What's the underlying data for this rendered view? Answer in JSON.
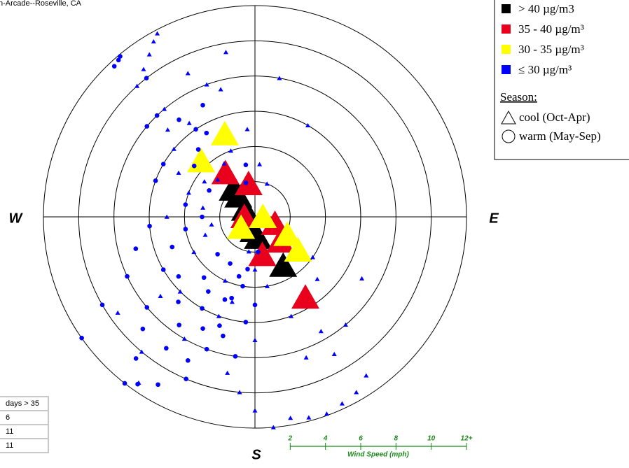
{
  "chart_data": {
    "type": "polar-scatter",
    "title": "n-Arcade--Roseville, CA",
    "compass": [
      "W",
      "E",
      "S"
    ],
    "rlim": [
      0,
      12
    ],
    "rticks": [
      2,
      4,
      6,
      8,
      10,
      {
        "value": 12,
        "label": "12+"
      }
    ],
    "r_axis_label": "Wind Speed (mph)",
    "legend": {
      "concentration": [
        "> 40 µg/m3",
        "35 - 40 µg/m³",
        "30 - 35 µg/m³",
        "≤ 30 µg/m³"
      ],
      "season_title": "Season:",
      "season": [
        "cool (Oct-Apr)",
        "warm (May-Sep)"
      ]
    },
    "series": [
      {
        "color": "#000000",
        "marker": "triangle",
        "x": [
          321,
          321,
          306,
          186,
          172,
          150
        ],
        "values": [
          2.0,
          1.5,
          0.7,
          0.8,
          1.2,
          3.2
        ]
      },
      {
        "color": "#e8001c",
        "marker": "triangle",
        "x": [
          326,
          349,
          109,
          134,
          169,
          148,
          270
        ],
        "values": [
          3.0,
          1.9,
          1.2,
          2.0,
          2.2,
          5.4,
          0.6
        ]
      },
      {
        "color": "#ffff00",
        "marker": "triangle",
        "x": [
          340,
          316,
          232,
          119,
          128,
          90
        ],
        "values": [
          5.0,
          4.4,
          1.0,
          2.1,
          3.1,
          0.45
        ]
      },
      {
        "color": "#0000ff",
        "marker": "triangle",
        "x": [
          330,
          332,
          327,
          323,
          318,
          335,
          340,
          345,
          350,
          320,
          315,
          310,
          325,
          300,
          290,
          305,
          315,
          330,
          340,
          355,
          5,
          20,
          30,
          10,
          200,
          210,
          220,
          215,
          190,
          180,
          175,
          170,
          165,
          160,
          155,
          150,
          145,
          150,
          140,
          160,
          170,
          180,
          190,
          240,
          250,
          260,
          270,
          280,
          135,
          125,
          120,
          150,
          160,
          180,
          195,
          205,
          230,
          235,
          225,
          185
        ],
        "values": [
          11.5,
          11.8,
          11,
          10.5,
          10,
          9,
          8,
          7.5,
          9.5,
          8,
          7,
          6,
          6.5,
          5,
          4,
          3.5,
          3,
          3.5,
          4,
          5,
          3,
          2,
          6,
          8,
          6,
          8,
          10,
          11.5,
          9,
          11,
          12,
          11.6,
          11.8,
          11.9,
          11.7,
          11.5,
          11,
          9,
          8,
          6,
          4,
          3,
          2,
          4,
          3,
          2.5,
          5,
          3,
          5,
          4,
          7,
          7.5,
          8.5,
          7,
          5,
          4,
          7,
          9.5,
          6,
          10
        ]
      },
      {
        "color": "#0000ff",
        "marker": "circle",
        "x": [
          320,
          319,
          317,
          322,
          316,
          322,
          326,
          330,
          320,
          310,
          300,
          290,
          280,
          270,
          260,
          250,
          240,
          230,
          225,
          220,
          218,
          215,
          210,
          205,
          200,
          195,
          210,
          200,
          190,
          185,
          195,
          205,
          215,
          212,
          198,
          188,
          203,
          208,
          220,
          225,
          180,
          175,
          240,
          235,
          245,
          255,
          265,
          196,
          214,
          222,
          232,
          188,
          335,
          310,
          300,
          345,
          350
        ],
        "values": [
          11.9,
          11.8,
          11.7,
          10,
          8,
          7,
          6,
          5.5,
          5,
          4.5,
          6,
          6,
          4,
          3,
          4,
          5,
          6,
          8,
          9,
          10.5,
          12,
          11.6,
          11,
          9,
          8,
          7,
          6,
          5,
          4,
          6,
          3.5,
          7,
          7.5,
          5,
          6.5,
          8,
          10,
          3,
          4.5,
          3,
          5,
          2,
          10,
          12,
          8,
          7,
          6,
          4.8,
          9,
          6.5,
          5.5,
          3,
          7,
          8,
          3,
          2,
          3
        ]
      }
    ]
  },
  "table": {
    "header": "days > 35",
    "rows": [
      "6",
      "11",
      "11"
    ]
  }
}
